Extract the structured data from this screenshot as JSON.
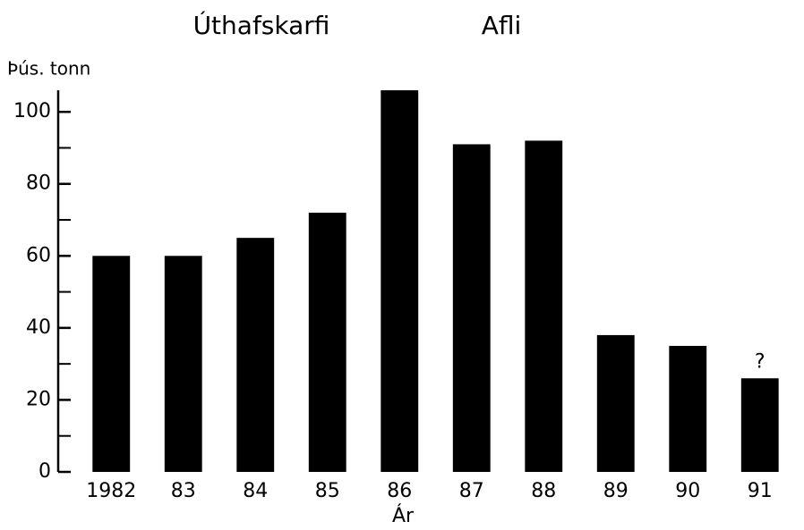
{
  "chart_data": {
    "type": "bar",
    "title": "Úthafskarfi",
    "subtitle": "Afli",
    "y_label": "Þús. tonn",
    "x_label": "Ár",
    "categories": [
      "1982",
      "83",
      "84",
      "85",
      "86",
      "87",
      "88",
      "89",
      "90",
      "91"
    ],
    "values": [
      60,
      60,
      65,
      72,
      106,
      91,
      92,
      38,
      35,
      26
    ],
    "color": "#000000",
    "annotations": [
      {
        "text": "?",
        "category_index": 9
      }
    ],
    "ylim": [
      0,
      106
    ],
    "yticks": [
      0,
      20,
      40,
      60,
      80,
      100
    ],
    "minor_yticks": [
      10,
      30,
      50,
      70,
      90
    ],
    "grid": false
  }
}
